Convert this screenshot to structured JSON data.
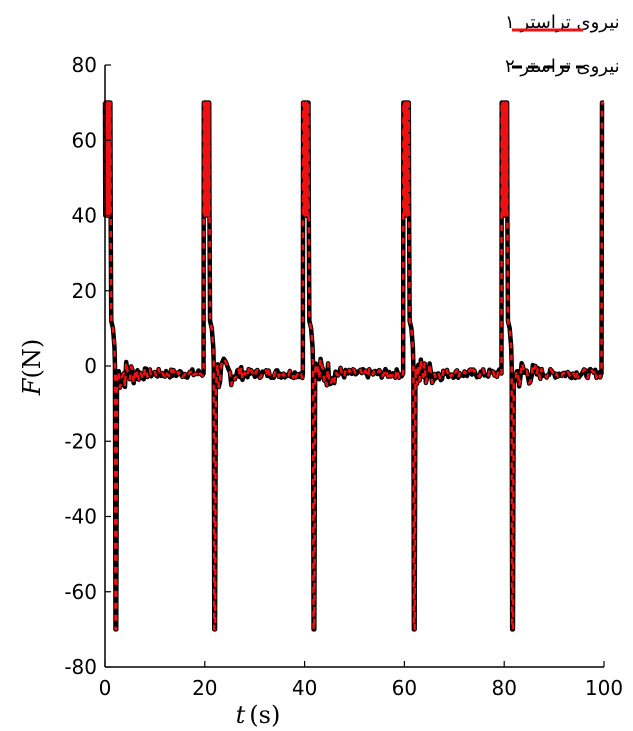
{
  "chart_data": {
    "type": "line",
    "title": "",
    "xlabel_var": "t",
    "xlabel_unit": "(s)",
    "ylabel_var": "F",
    "ylabel_unit": "(N)",
    "xlim": [
      0,
      100
    ],
    "ylim": [
      -80,
      80
    ],
    "x_ticks": [
      0,
      20,
      40,
      60,
      80,
      100
    ],
    "y_ticks": [
      -80,
      -60,
      -40,
      -20,
      0,
      20,
      40,
      60,
      80
    ],
    "grid": false,
    "legend_position": "top-right",
    "colors": {
      "series1": "#ee1111",
      "series2": "#000000",
      "axis": "#000000"
    },
    "series": [
      {
        "name": "نیروی تراستر ۱",
        "style": "solid",
        "color": "#ee1111",
        "pulse_starts": [
          0,
          19.8,
          39.7,
          59.8,
          79.5,
          99.5
        ],
        "peak": 70,
        "min": -70,
        "steady": -2
      },
      {
        "name": "نیروی تراستر ۲",
        "style": "dashed",
        "color": "#000000",
        "pulse_starts": [
          0,
          19.8,
          39.7,
          59.8,
          79.5,
          99.5
        ],
        "peak": 70,
        "min": -70,
        "steady": -2
      }
    ]
  }
}
